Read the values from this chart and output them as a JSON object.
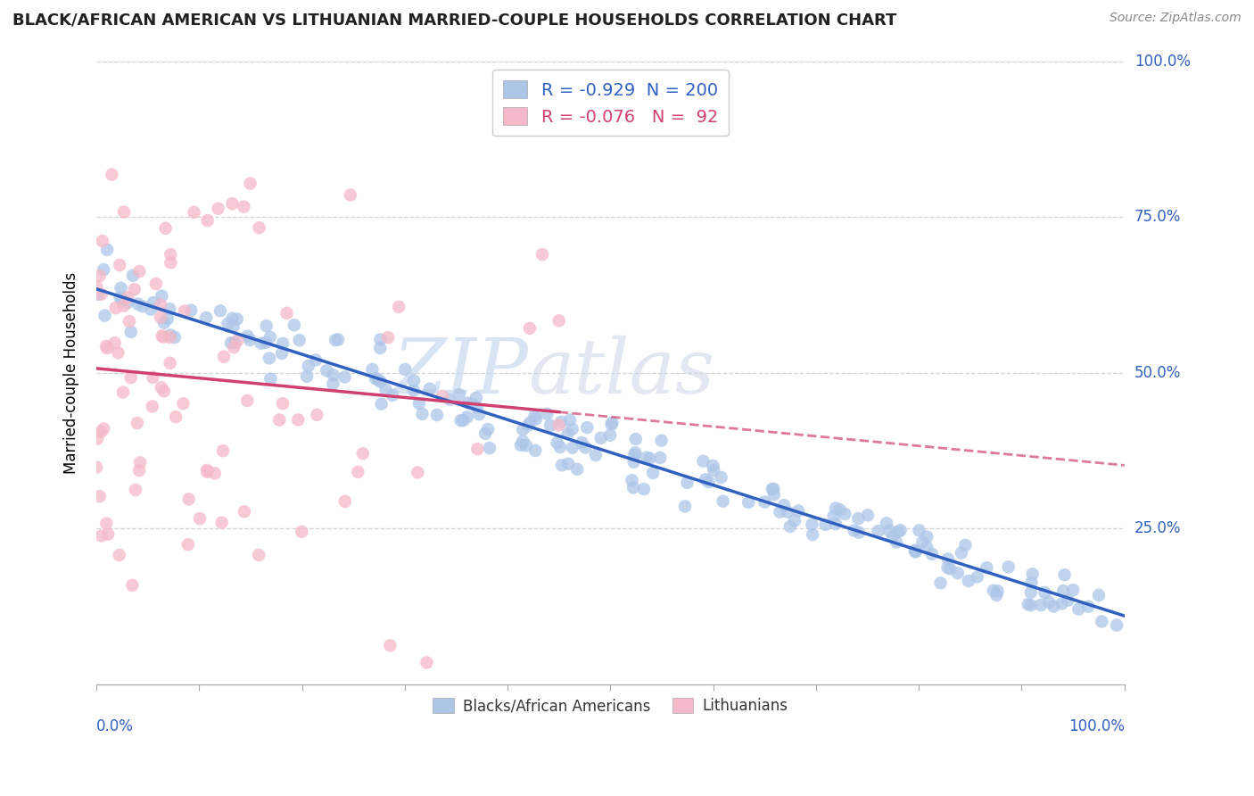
{
  "title": "BLACK/AFRICAN AMERICAN VS LITHUANIAN MARRIED-COUPLE HOUSEHOLDS CORRELATION CHART",
  "source": "Source: ZipAtlas.com",
  "ylabel": "Married-couple Households",
  "watermark_part1": "ZIP",
  "watermark_part2": "atlas",
  "blue_R": -0.929,
  "blue_N": 200,
  "pink_R": -0.076,
  "pink_N": 92,
  "blue_color": "#adc6e8",
  "pink_color": "#f5b8c8",
  "blue_line_color": "#3060c0",
  "pink_line_color": "#d04070",
  "legend_label_blue": "Blacks/African Americans",
  "legend_label_pink": "Lithuanians",
  "xlim": [
    0.0,
    1.0
  ],
  "ylim": [
    0.0,
    1.0
  ],
  "x_ticks": [
    0.0,
    0.1,
    0.2,
    0.3,
    0.4,
    0.5,
    0.6,
    0.7,
    0.8,
    0.9,
    1.0
  ],
  "y_ticks": [
    0.0,
    0.25,
    0.5,
    0.75,
    1.0
  ],
  "y_tick_labels": [
    "",
    "25.0%",
    "50.0%",
    "75.0%",
    "100.0%"
  ],
  "background_color": "#ffffff",
  "grid_color": "#c8c8c8",
  "title_color": "#222222",
  "source_color": "#888888",
  "axis_label_color": "#3060c0"
}
